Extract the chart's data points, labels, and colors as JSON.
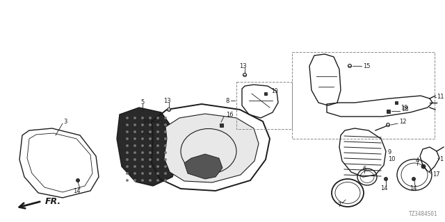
{
  "diagram_code": "TZ3484S01",
  "background_color": "#ffffff",
  "line_color": "#1a1a1a",
  "fig_w": 6.4,
  "fig_h": 3.2,
  "dpi": 100
}
